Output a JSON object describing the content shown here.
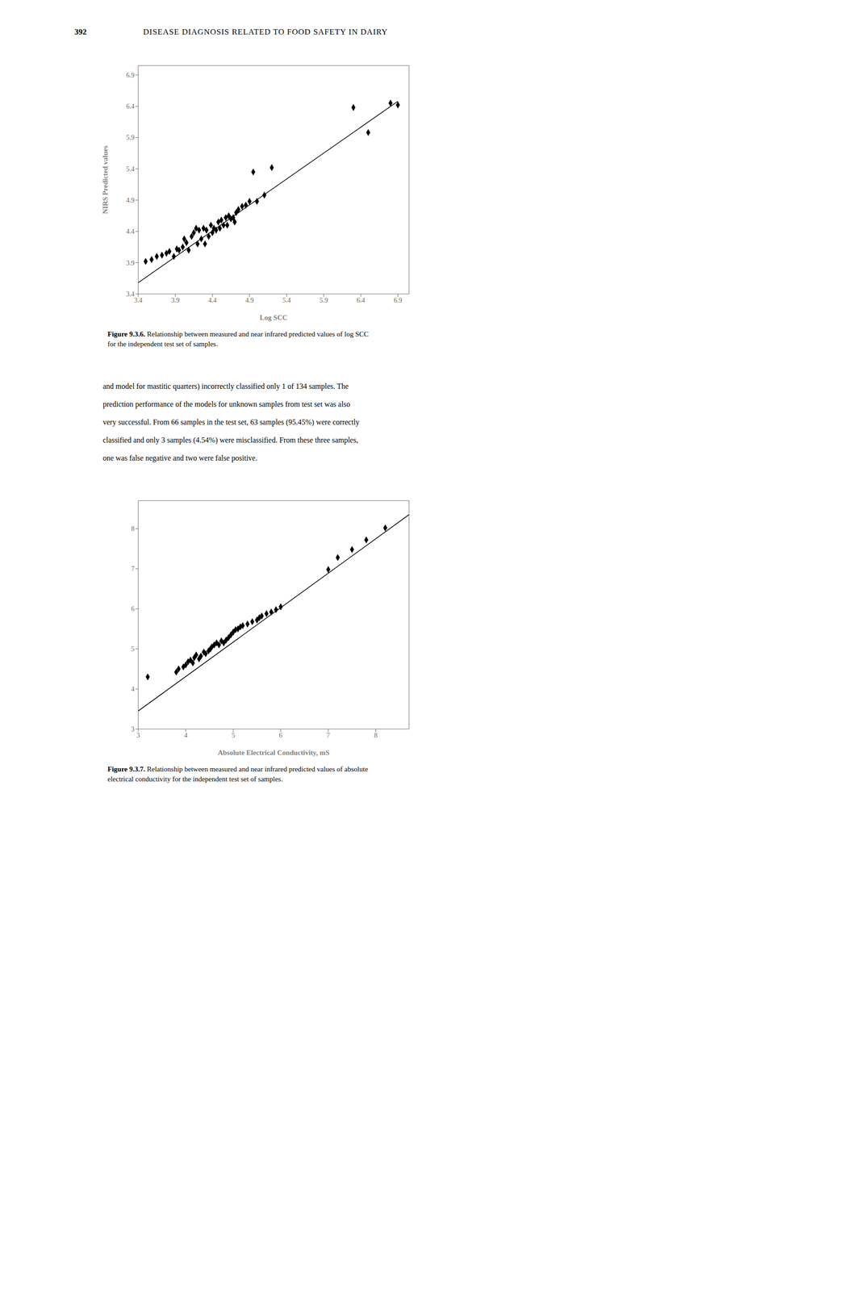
{
  "header": [
    "392",
    "DISEASE DIAGNOSIS RELATED TO FOOD SAFETY IN DAIRY"
  ],
  "text": [
    "and model for mastitic quarters) incorrectly classified only 1 of 134 samples. The",
    "prediction performance of the models for unknown samples from test set was also",
    "very successful. From 66 samples in the test set, 63 samples (95.45%) were correctly",
    "classified and only 3 samples (4.54%) were misclassified. From these three samples,",
    "one was false negative and two were false positive."
  ],
  "chart_data": [
    {
      "type": "scatter",
      "xlabel": "Log SCC",
      "ylabel": "NIRS Predicted values",
      "caption_label": "Figure 9.3.6.",
      "caption": " Relationship between measured and near infrared predicted values of log SCC\nfor the independent test set of samples.",
      "xlim": [
        3.4,
        7.05
      ],
      "ylim": [
        3.4,
        7.05
      ],
      "xticks": [
        3.4,
        3.9,
        4.4,
        4.9,
        5.4,
        5.9,
        6.4,
        6.9
      ],
      "yticks": [
        3.4,
        3.9,
        4.4,
        4.9,
        5.4,
        5.9,
        6.4,
        6.9
      ],
      "series": [
        {
          "type": "scatter",
          "marker": "diamond",
          "color": "#000000",
          "x": [
            3.5,
            3.58,
            3.65,
            3.72,
            3.78,
            3.82,
            3.88,
            3.92,
            3.95,
            4.0,
            4.02,
            4.05,
            4.08,
            4.12,
            4.15,
            4.18,
            4.2,
            4.22,
            4.25,
            4.28,
            4.3,
            4.32,
            4.35,
            4.38,
            4.4,
            4.42,
            4.45,
            4.48,
            4.5,
            4.52,
            4.55,
            4.58,
            4.6,
            4.62,
            4.65,
            4.68,
            4.7,
            4.72,
            4.75,
            4.8,
            4.85,
            4.9,
            4.95,
            5.0,
            5.1,
            5.2,
            6.3,
            6.5,
            6.8,
            6.9
          ],
          "values": [
            3.92,
            3.95,
            4.0,
            4.02,
            4.05,
            4.08,
            4.0,
            4.12,
            4.1,
            4.15,
            4.28,
            4.22,
            4.1,
            4.32,
            4.38,
            4.45,
            4.2,
            4.42,
            4.28,
            4.45,
            4.2,
            4.42,
            4.32,
            4.5,
            4.38,
            4.45,
            4.42,
            4.55,
            4.45,
            4.58,
            4.5,
            4.62,
            4.5,
            4.65,
            4.6,
            4.62,
            4.55,
            4.7,
            4.75,
            4.8,
            4.82,
            4.88,
            5.35,
            4.88,
            4.98,
            5.42,
            6.38,
            5.98,
            6.45,
            6.42
          ]
        },
        {
          "type": "line",
          "line_style": "solid",
          "color": "#000000",
          "x": [
            3.4,
            6.9
          ],
          "values": [
            3.58,
            6.48
          ]
        }
      ]
    },
    {
      "type": "scatter",
      "xlabel": "Absolute Electrical Conductivity, mS",
      "caption_label": "Figure 9.3.7.",
      "caption": " Relationship between measured and near infrared predicted values of absolute\nelectrical conductivity for the independent test set of samples.",
      "xlim": [
        3.0,
        8.7
      ],
      "ylim": [
        3.0,
        8.7
      ],
      "xticks": [
        3,
        4,
        5,
        6,
        7,
        8
      ],
      "yticks": [
        3,
        4,
        5,
        6,
        7,
        8
      ],
      "series": [
        {
          "type": "scatter",
          "marker": "diamond",
          "color": "#000000",
          "x": [
            3.2,
            3.8,
            3.85,
            3.95,
            4.0,
            4.05,
            4.1,
            4.15,
            4.18,
            4.22,
            4.28,
            4.32,
            4.38,
            4.42,
            4.48,
            4.52,
            4.55,
            4.6,
            4.65,
            4.7,
            4.75,
            4.8,
            4.85,
            4.9,
            4.95,
            5.0,
            5.05,
            5.1,
            5.15,
            5.2,
            5.3,
            5.4,
            5.5,
            5.55,
            5.6,
            5.7,
            5.8,
            5.9,
            6.0,
            7.0,
            7.2,
            7.5,
            7.8,
            8.2
          ],
          "values": [
            4.3,
            4.42,
            4.5,
            4.55,
            4.6,
            4.68,
            4.72,
            4.65,
            4.78,
            4.85,
            4.75,
            4.82,
            4.92,
            4.88,
            4.95,
            5.0,
            5.05,
            5.1,
            5.15,
            5.1,
            5.2,
            5.15,
            5.22,
            5.28,
            5.35,
            5.42,
            5.48,
            5.5,
            5.55,
            5.58,
            5.62,
            5.68,
            5.72,
            5.78,
            5.82,
            5.88,
            5.92,
            5.98,
            6.05,
            6.98,
            7.28,
            7.48,
            7.72,
            8.02
          ]
        },
        {
          "type": "line",
          "line_style": "solid",
          "color": "#000000",
          "x": [
            3.0,
            8.7
          ],
          "values": [
            3.45,
            8.35
          ]
        }
      ]
    }
  ]
}
